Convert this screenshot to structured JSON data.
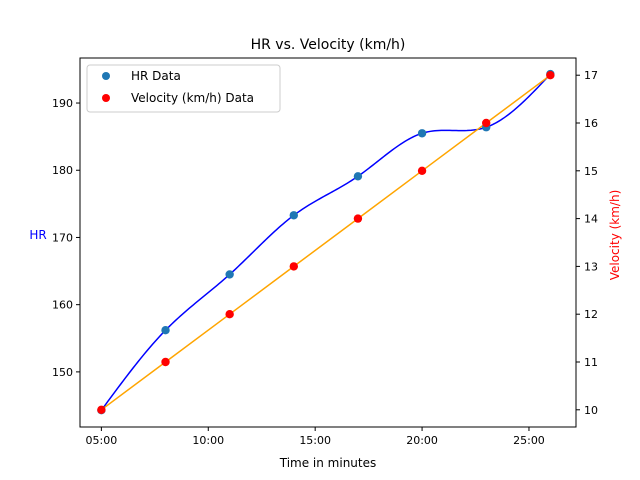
{
  "chart_data": {
    "type": "line",
    "title": "HR vs. Velocity (km/h)",
    "xlabel": "Time in minutes",
    "ylabel_left": "HR",
    "ylabel_right": "Velocity (km/h)",
    "x": [
      "05:00",
      "08:00",
      "11:00",
      "14:00",
      "17:00",
      "20:00",
      "23:00",
      "26:00"
    ],
    "x_minutes": [
      5,
      8,
      11,
      14,
      17,
      20,
      23,
      26
    ],
    "xlim": [
      4,
      27.2
    ],
    "x_ticks": [
      5,
      10,
      15,
      20,
      25
    ],
    "x_tick_labels": [
      "05:00",
      "10:00",
      "15:00",
      "20:00",
      "25:00"
    ],
    "y_left": {
      "lim": [
        141.8,
        196.7
      ],
      "ticks": [
        150,
        160,
        170,
        180,
        190
      ],
      "tick_labels": [
        "150",
        "160",
        "170",
        "180",
        "190"
      ]
    },
    "y_right": {
      "lim": [
        9.64,
        17.36
      ],
      "ticks": [
        10,
        11,
        12,
        13,
        14,
        15,
        16,
        17
      ],
      "tick_labels": [
        "10",
        "11",
        "12",
        "13",
        "14",
        "15",
        "16",
        "17"
      ]
    },
    "series": [
      {
        "name": "HR Data",
        "axis": "left",
        "values": [
          144.3,
          156.2,
          164.5,
          173.3,
          179.1,
          185.5,
          186.4,
          194.3
        ],
        "marker_color": "#1f77b4",
        "line_color": "#0000ff"
      },
      {
        "name": "Velocity (km/h) Data",
        "axis": "right",
        "values": [
          10,
          11,
          12,
          13,
          14,
          15,
          16,
          17
        ],
        "marker_color": "#ff0000",
        "line_color": "#ffa500"
      }
    ],
    "legend": {
      "placement": "top-left"
    },
    "grid": false,
    "colors": {
      "left_axis_label": "#0000ff",
      "right_axis_label": "#ff0000",
      "axes": "#000000"
    }
  }
}
